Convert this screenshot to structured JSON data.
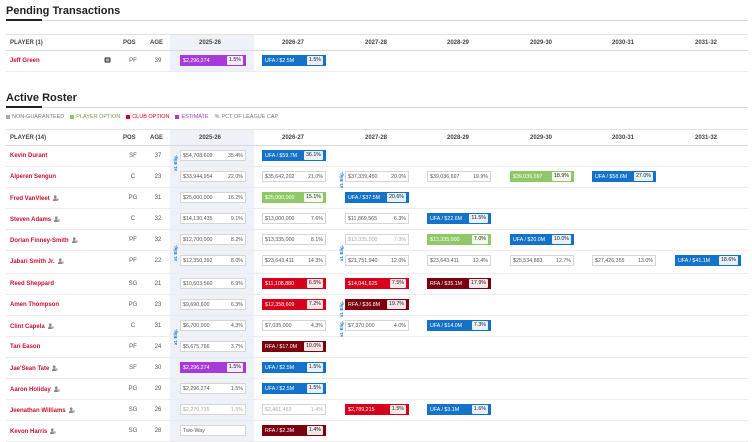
{
  "pending": {
    "title": "Pending Transactions",
    "header": {
      "player": "PLAYER (1)",
      "pos": "POS",
      "age": "AGE",
      "years": [
        "2025-26",
        "2026-27",
        "2027-28",
        "2028-29",
        "2029-30",
        "2030-31",
        "2031-32"
      ]
    },
    "rows": [
      {
        "name": "Jeff Green",
        "pos": "PF",
        "age": "39",
        "c2025": {
          "amt": "$2,296,274",
          "pct": "1.5%"
        },
        "c2026": {
          "amt": "UFA / $2.5M",
          "pct": "1.5%"
        }
      }
    ]
  },
  "roster": {
    "title": "Active Roster",
    "legend": {
      "non_guaranteed": "NON-GUARANTEED",
      "player_option": "PLAYER OPTION",
      "club_option": "CLUB OPTION",
      "estimate": "ESTIMATE",
      "pct_symbol": "%",
      "pct_label": "PCT OF LEAGUE CAP"
    },
    "colors": {
      "non_guaranteed": "#aaaaaa",
      "player_option": "#8fc866",
      "club_option": "#d6001c",
      "estimate": "#a63bd8",
      "ufa": "#1473c8",
      "rfa": "#7a0010",
      "player_name": "#c8102e"
    },
    "header": {
      "player": "PLAYER (14)",
      "pos": "POS",
      "age": "AGE",
      "years": [
        "2025-26",
        "2026-27",
        "2027-28",
        "2028-29",
        "2029-30",
        "2030-31",
        "2031-32"
      ]
    },
    "elig_label": "xt. Elig.",
    "players": [
      {
        "name": "Kevin Durant",
        "pos": "SF",
        "age": "37",
        "icon": false,
        "c2025": {
          "amt": "$54,708,609",
          "pct": "35.4%"
        },
        "c2026": {
          "amt": "UFA / $59.7M",
          "pct": "36.1%"
        }
      },
      {
        "name": "Alperen Sengun",
        "pos": "C",
        "age": "23",
        "icon": false,
        "c2025": {
          "amt": "$33,944,954",
          "pct": "22.0%"
        },
        "c2026": {
          "amt": "$35,642,202",
          "pct": "21.0%"
        },
        "c2027": {
          "amt": "$37,339,450",
          "pct": "20.0%"
        },
        "c2028": {
          "amt": "$39,036,697",
          "pct": "19.9%"
        },
        "c2029": {
          "amt": "$39,036,697",
          "pct": "18.9%"
        },
        "c2030": {
          "amt": "UFA / $58.6M",
          "pct": "27.0%"
        }
      },
      {
        "name": "Fred VanVleet",
        "pos": "PG",
        "age": "31",
        "icon": true,
        "c2025": {
          "amt": "$25,000,000",
          "pct": "16.2%"
        },
        "c2026": {
          "amt": "$25,000,000",
          "pct": "15.1%"
        },
        "c2027": {
          "amt": "UFA / $37.5M",
          "pct": "20.6%"
        }
      },
      {
        "name": "Steven Adams",
        "pos": "C",
        "age": "32",
        "icon": true,
        "c2025": {
          "amt": "$14,130,435",
          "pct": "9.1%"
        },
        "c2026": {
          "amt": "$13,000,000",
          "pct": "7.6%"
        },
        "c2027": {
          "amt": "$11,869,565",
          "pct": "6.3%"
        },
        "c2028": {
          "amt": "UFA / $22.6M",
          "pct": "11.5%"
        }
      },
      {
        "name": "Dorian Finney-Smith",
        "pos": "PF",
        "age": "32",
        "icon": true,
        "c2025": {
          "amt": "$12,700,000",
          "pct": "8.2%"
        },
        "c2026": {
          "amt": "$13,335,000",
          "pct": "8.1%"
        },
        "c2027": {
          "amt": "$13,335,000",
          "pct": "7.3%"
        },
        "c2028": {
          "amt": "$13,335,000",
          "pct": "7.0%"
        },
        "c2029": {
          "amt": "UFA / $20.0M",
          "pct": "10.0%"
        }
      },
      {
        "name": "Jabari Smith Jr.",
        "pos": "PF",
        "age": "22",
        "icon": true,
        "c2025": {
          "amt": "$12,350,392",
          "pct": "8.0%"
        },
        "c2026": {
          "amt": "$23,643,411",
          "pct": "14.3%"
        },
        "c2027": {
          "amt": "$21,751,940",
          "pct": "12.0%"
        },
        "c2028": {
          "amt": "$23,643,411",
          "pct": "12.4%"
        },
        "c2029": {
          "amt": "$25,534,883",
          "pct": "12.7%"
        },
        "c2030": {
          "amt": "$27,426,355",
          "pct": "13.0%"
        },
        "c2031": {
          "amt": "UFA / $41.1M",
          "pct": "18.6%"
        }
      },
      {
        "name": "Reed Sheppard",
        "pos": "SG",
        "age": "21",
        "icon": false,
        "c2025": {
          "amt": "$10,603,560",
          "pct": "6.9%"
        },
        "c2026": {
          "amt": "$11,108,880",
          "pct": "6.5%"
        },
        "c2027": {
          "amt": "$14,041,625",
          "pct": "7.5%"
        },
        "c2028": {
          "amt": "RFA / $35.1M",
          "pct": "17.9%"
        }
      },
      {
        "name": "Amen Thompson",
        "pos": "PG",
        "age": "23",
        "icon": false,
        "c2025": {
          "amt": "$9,690,600",
          "pct": "6.3%"
        },
        "c2026": {
          "amt": "$12,358,609",
          "pct": "7.2%"
        },
        "c2027": {
          "amt": "RFA / $36.8M",
          "pct": "19.7%"
        }
      },
      {
        "name": "Clint Capela",
        "pos": "C",
        "age": "31",
        "icon": true,
        "c2025": {
          "amt": "$6,700,000",
          "pct": "4.3%"
        },
        "c2026": {
          "amt": "$7,035,000",
          "pct": "4.3%"
        },
        "c2027": {
          "amt": "$7,370,000",
          "pct": "4.0%"
        },
        "c2028": {
          "amt": "UFA / $14.0M",
          "pct": "7.3%"
        }
      },
      {
        "name": "Tari Eason",
        "pos": "PF",
        "age": "24",
        "icon": false,
        "c2025": {
          "amt": "$5,675,766",
          "pct": "3.7%"
        },
        "c2026": {
          "amt": "RFA / $17.0M",
          "pct": "10.0%"
        }
      },
      {
        "name": "Jae'Sean Tate",
        "pos": "SF",
        "age": "30",
        "icon": true,
        "c2025": {
          "amt": "$2,296,274",
          "pct": "1.5%"
        },
        "c2026": {
          "amt": "UFA / $2.5M",
          "pct": "1.5%"
        }
      },
      {
        "name": "Aaron Holiday",
        "pos": "PG",
        "age": "29",
        "icon": true,
        "c2025": {
          "amt": "$2,296,274",
          "pct": "1.5%"
        },
        "c2026": {
          "amt": "UFA / $2.5M",
          "pct": "1.5%"
        }
      },
      {
        "name": "Jeenathan Williams",
        "pos": "SG",
        "age": "26",
        "icon": true,
        "c2025": {
          "amt": "$2,270,735",
          "pct": "1.5%"
        },
        "c2026": {
          "amt": "$2,461,463",
          "pct": "1.4%"
        },
        "c2027": {
          "amt": "$2,789,215",
          "pct": "1.5%"
        },
        "c2028": {
          "amt": "UFA / $3.1M",
          "pct": "1.6%"
        }
      },
      {
        "name": "Kevon Harris",
        "pos": "SG",
        "age": "28",
        "icon": true,
        "c2025": {
          "amt": "Two-Way",
          "pct": ""
        },
        "c2026": {
          "amt": "RFA / $2.3M",
          "pct": "1.4%"
        }
      }
    ]
  }
}
